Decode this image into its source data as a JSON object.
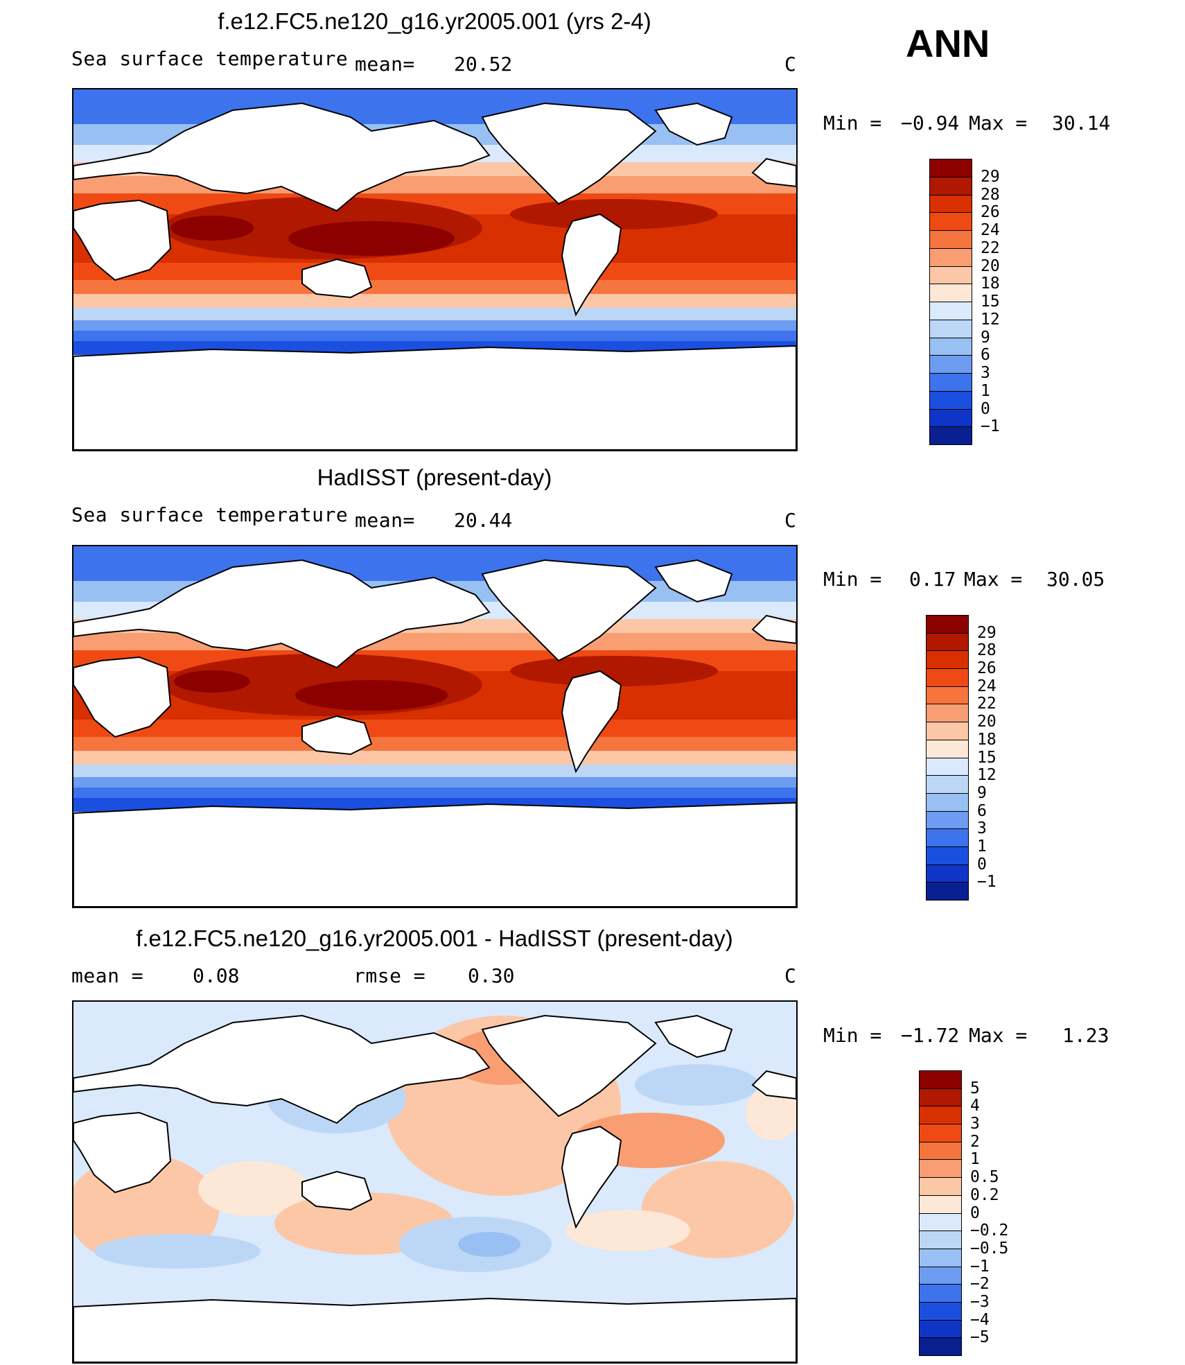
{
  "season": "ANN",
  "panels": [
    {
      "id": "model",
      "title": "f.e12.FC5.ne120_g16.yr2005.001 (yrs 2-4)",
      "variable": "Sea surface temperature",
      "stat1_label": "mean=",
      "stat1_value": "20.52",
      "stat2_label": "",
      "stat2_value": "",
      "units": "C",
      "min_label": "Min =",
      "min_value": "−0.94",
      "max_label": "Max =",
      "max_value": "30.14",
      "colorbar": {
        "labels": [
          "29",
          "28",
          "26",
          "24",
          "22",
          "20",
          "18",
          "15",
          "12",
          "9",
          "6",
          "3",
          "1",
          "0",
          "−1"
        ],
        "colors": [
          "#8c0000",
          "#b01800",
          "#d83000",
          "#ef4a14",
          "#f6743e",
          "#f99e72",
          "#fcc7a6",
          "#fde7d6",
          "#dae9fb",
          "#bcd7f6",
          "#98c0f3",
          "#6d9cf0",
          "#3d73ec",
          "#1a4fe0",
          "#0f35c8",
          "#0a1f90"
        ]
      }
    },
    {
      "id": "obs",
      "title": "HadISST (present-day)",
      "variable": "Sea surface temperature",
      "stat1_label": "mean=",
      "stat1_value": "20.44",
      "stat2_label": "",
      "stat2_value": "",
      "units": "C",
      "min_label": "Min =",
      "min_value": "0.17",
      "max_label": "Max =",
      "max_value": "30.05",
      "colorbar": {
        "labels": [
          "29",
          "28",
          "26",
          "24",
          "22",
          "20",
          "18",
          "15",
          "12",
          "9",
          "6",
          "3",
          "1",
          "0",
          "−1"
        ],
        "colors": [
          "#8c0000",
          "#b01800",
          "#d83000",
          "#ef4a14",
          "#f6743e",
          "#f99e72",
          "#fcc7a6",
          "#fde7d6",
          "#dae9fb",
          "#bcd7f6",
          "#98c0f3",
          "#6d9cf0",
          "#3d73ec",
          "#1a4fe0",
          "#0f35c8",
          "#0a1f90"
        ]
      }
    },
    {
      "id": "diff",
      "title": "f.e12.FC5.ne120_g16.yr2005.001 - HadISST (present-day)",
      "variable": "",
      "stat1_label": "mean =",
      "stat1_value": "0.08",
      "stat2_label": "rmse =",
      "stat2_value": "0.30",
      "units": "C",
      "min_label": "Min =",
      "min_value": "−1.72",
      "max_label": "Max =",
      "max_value": "1.23",
      "colorbar": {
        "labels": [
          "5",
          "4",
          "3",
          "2",
          "1",
          "0.5",
          "0.2",
          "0",
          "−0.2",
          "−0.5",
          "−1",
          "−2",
          "−3",
          "−4",
          "−5"
        ],
        "colors": [
          "#8c0000",
          "#b01800",
          "#d83000",
          "#ef4a14",
          "#f6743e",
          "#f99e72",
          "#fcc7a6",
          "#fde7d6",
          "#dae9fb",
          "#bcd7f6",
          "#98c0f3",
          "#6d9cf0",
          "#3d73ec",
          "#1a4fe0",
          "#0f35c8",
          "#0a1f90"
        ]
      }
    }
  ]
}
